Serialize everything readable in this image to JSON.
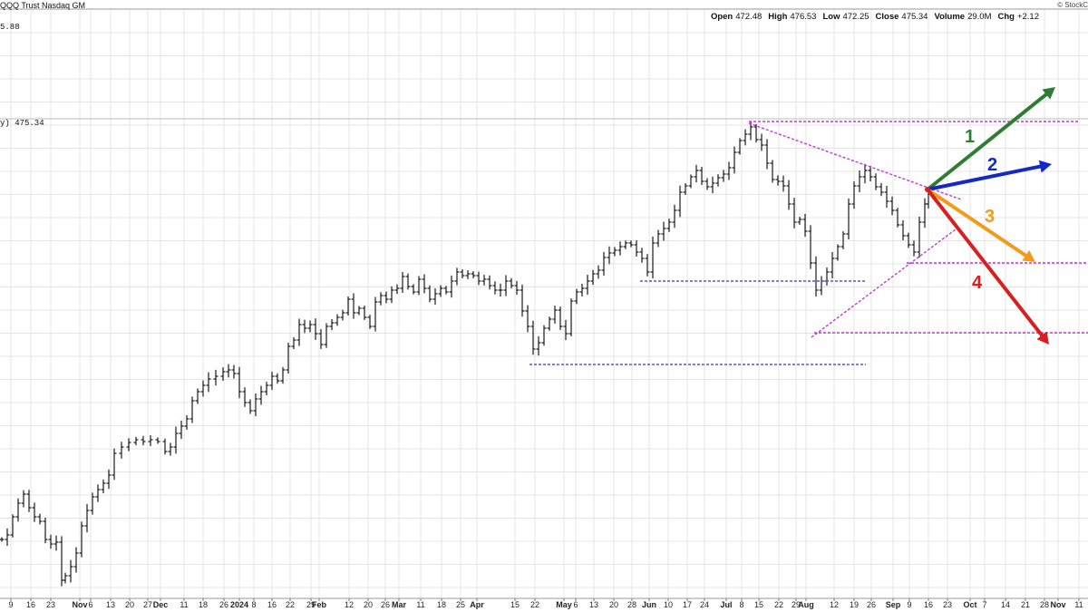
{
  "header": {
    "title": "QQQ Trust Nasdaq GM",
    "credit": "© StockC",
    "top_value": "5.88",
    "last_label": "y) 475.34",
    "stats": [
      {
        "label": "Open",
        "value": "472.48"
      },
      {
        "label": "High",
        "value": "476.53"
      },
      {
        "label": "Low",
        "value": "472.25"
      },
      {
        "label": "Close",
        "value": "475.34"
      },
      {
        "label": "Volume",
        "value": "29.0M"
      },
      {
        "label": "Chg",
        "value": "+2.12"
      }
    ]
  },
  "chart_data": {
    "type": "ohlc",
    "title": "QQQ Trust Nasdaq GM",
    "last_close": 475.34,
    "grid": true,
    "x_ticks": [
      {
        "label": "9",
        "major": false
      },
      {
        "label": "16",
        "major": false
      },
      {
        "label": "23",
        "major": false
      },
      {
        "label": "Nov",
        "major": true
      },
      {
        "label": "6",
        "major": false
      },
      {
        "label": "13",
        "major": false
      },
      {
        "label": "20",
        "major": false
      },
      {
        "label": "27",
        "major": false
      },
      {
        "label": "Dec",
        "major": true
      },
      {
        "label": "11",
        "major": false
      },
      {
        "label": "18",
        "major": false
      },
      {
        "label": "26",
        "major": false
      },
      {
        "label": "2024",
        "major": true
      },
      {
        "label": "8",
        "major": false
      },
      {
        "label": "16",
        "major": false
      },
      {
        "label": "22",
        "major": false
      },
      {
        "label": "29",
        "major": false
      },
      {
        "label": "Feb",
        "major": true
      },
      {
        "label": "12",
        "major": false
      },
      {
        "label": "20",
        "major": false
      },
      {
        "label": "26",
        "major": false
      },
      {
        "label": "Mar",
        "major": true
      },
      {
        "label": "11",
        "major": false
      },
      {
        "label": "18",
        "major": false
      },
      {
        "label": "25",
        "major": false
      },
      {
        "label": "Apr",
        "major": true
      },
      {
        "label": "15",
        "major": false
      },
      {
        "label": "22",
        "major": false
      },
      {
        "label": "May",
        "major": true
      },
      {
        "label": "6",
        "major": false
      },
      {
        "label": "13",
        "major": false
      },
      {
        "label": "20",
        "major": false
      },
      {
        "label": "28",
        "major": false
      },
      {
        "label": "Jun",
        "major": true
      },
      {
        "label": "10",
        "major": false
      },
      {
        "label": "17",
        "major": false
      },
      {
        "label": "24",
        "major": false
      },
      {
        "label": "Jul",
        "major": true
      },
      {
        "label": "8",
        "major": false
      },
      {
        "label": "15",
        "major": false
      },
      {
        "label": "22",
        "major": false
      },
      {
        "label": "29",
        "major": false
      },
      {
        "label": "Aug",
        "major": true
      },
      {
        "label": "12",
        "major": false
      },
      {
        "label": "19",
        "major": false
      },
      {
        "label": "26",
        "major": false
      },
      {
        "label": "Sep",
        "major": true
      },
      {
        "label": "9",
        "major": false
      },
      {
        "label": "16",
        "major": false
      },
      {
        "label": "23",
        "major": false
      },
      {
        "label": "Oct",
        "major": true
      },
      {
        "label": "7",
        "major": false
      },
      {
        "label": "14",
        "major": false
      },
      {
        "label": "21",
        "major": false
      },
      {
        "label": "28",
        "major": false
      },
      {
        "label": "Nov",
        "major": true
      },
      {
        "label": "11",
        "major": false
      }
    ],
    "scenarios": [
      {
        "label": "1",
        "color": "#2e7d32"
      },
      {
        "label": "2",
        "color": "#1428c8"
      },
      {
        "label": "3",
        "color": "#f29a1a"
      },
      {
        "label": "4",
        "color": "#d81e1e"
      }
    ],
    "colors": {
      "bars": "#1a1a1a",
      "resistance_lines": "#c238d6",
      "support_lines": "#5a55c8",
      "grid": "#e4e4e4"
    }
  }
}
